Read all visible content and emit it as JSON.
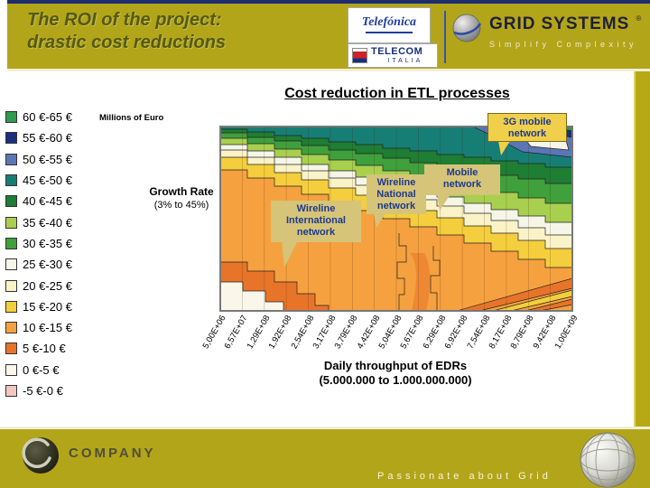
{
  "header": {
    "title_line1": "The ROI of the project:",
    "title_line2": "drastic cost reductions"
  },
  "logos": {
    "telefonica": "Telefónica",
    "telecom": "TELECOM",
    "telecom_sub": "ITALIA",
    "grid_word1": "GRID",
    "grid_word2": "SYSTEMS",
    "grid_reg": "®",
    "grid_tagline": "Simplify Complexity"
  },
  "colors": {
    "top_accent": "#1c2d70",
    "header_background": "#b3a519",
    "title_text": "#555a10",
    "callout_background": "#d6c478",
    "callout_text": "#1e3a8e",
    "highlight_callout_background": "#f0cf4a"
  },
  "chart": {
    "title": "Cost reduction in ETL processes",
    "units_label": "Millions of Euro",
    "y_label_line1": "Growth Rate",
    "y_label_line2": "(3% to 45%)",
    "x_title_line1": "Daily throughput of EDRs",
    "x_title_line2": "(5.000.000 to 1.000.000.000)",
    "legend": [
      {
        "label": "60 €-65 €",
        "color": "#2E9B4E"
      },
      {
        "label": "55 €-60 €",
        "color": "#1B2F7E"
      },
      {
        "label": "50 €-55 €",
        "color": "#5B76B7"
      },
      {
        "label": "45 €-50 €",
        "color": "#177E76"
      },
      {
        "label": "40 €-45 €",
        "color": "#1E7E34"
      },
      {
        "label": "35 €-40 €",
        "color": "#A9CF4F"
      },
      {
        "label": "30 €-35 €",
        "color": "#3FA03C"
      },
      {
        "label": "25 €-30 €",
        "color": "#F6F6E8"
      },
      {
        "label": "20 €-25 €",
        "color": "#FBF3C8"
      },
      {
        "label": "15 €-20 €",
        "color": "#F4CE3C"
      },
      {
        "label": "10 €-15 €",
        "color": "#F6A13F"
      },
      {
        "label": "5 €-10 €",
        "color": "#E8742A"
      },
      {
        "label": "0 €-5 €",
        "color": "#FAF7EA"
      },
      {
        "label": "-5 €-0 €",
        "color": "#F2C7C0"
      }
    ],
    "x_ticks": [
      "5,00E+06",
      "6,57E+07",
      "1,29E+08",
      "1,92E+08",
      "2,54E+08",
      "3,17E+08",
      "3,79E+08",
      "4,42E+08",
      "5,04E+08",
      "5,67E+08",
      "6,29E+08",
      "6,92E+08",
      "7,54E+08",
      "8,17E+08",
      "8,79E+08",
      "9,42E+08",
      "1,00E+09"
    ],
    "callouts": {
      "g3": {
        "l1": "3G mobile",
        "l2": "network"
      },
      "mobile": {
        "l1": "Mobile",
        "l2": "network"
      },
      "wireline_national": {
        "l1": "Wireline",
        "l2": "National",
        "l3": "network"
      },
      "wireline_international": {
        "l1": "Wireline",
        "l2": "International",
        "l3": "network"
      }
    }
  },
  "chart_data": {
    "type": "heatmap",
    "title": "Cost reduction in ETL processes",
    "xlabel": "Daily throughput of EDRs (5.000.000 to 1.000.000.000)",
    "ylabel": "Growth Rate (3% to 45%)",
    "units": "Millions of Euro",
    "x_range": [
      5000000,
      1000000000
    ],
    "y_range_percent": [
      3,
      45
    ],
    "z_range_millions_eur": [
      -5,
      65
    ],
    "x_tick_labels": [
      "5,00E+06",
      "6,57E+07",
      "1,29E+08",
      "1,92E+08",
      "2,54E+08",
      "3,17E+08",
      "3,79E+08",
      "4,42E+08",
      "5,04E+08",
      "5,67E+08",
      "6,29E+08",
      "6,92E+08",
      "7,54E+08",
      "8,17E+08",
      "8,79E+08",
      "9,42E+08",
      "1,00E+09"
    ],
    "value_bands_millions_eur": [
      [
        60,
        65
      ],
      [
        55,
        60
      ],
      [
        50,
        55
      ],
      [
        45,
        50
      ],
      [
        40,
        45
      ],
      [
        35,
        40
      ],
      [
        30,
        35
      ],
      [
        25,
        30
      ],
      [
        20,
        25
      ],
      [
        15,
        20
      ],
      [
        10,
        15
      ],
      [
        5,
        10
      ],
      [
        0,
        5
      ],
      [
        -5,
        0
      ]
    ],
    "annotations": [
      "3G mobile network",
      "Mobile network",
      "Wireline National network",
      "Wireline International network"
    ],
    "legend_position": "left",
    "grid": true
  },
  "footer": {
    "company": "COMPANY",
    "tagline": "Passionate about Grid"
  }
}
